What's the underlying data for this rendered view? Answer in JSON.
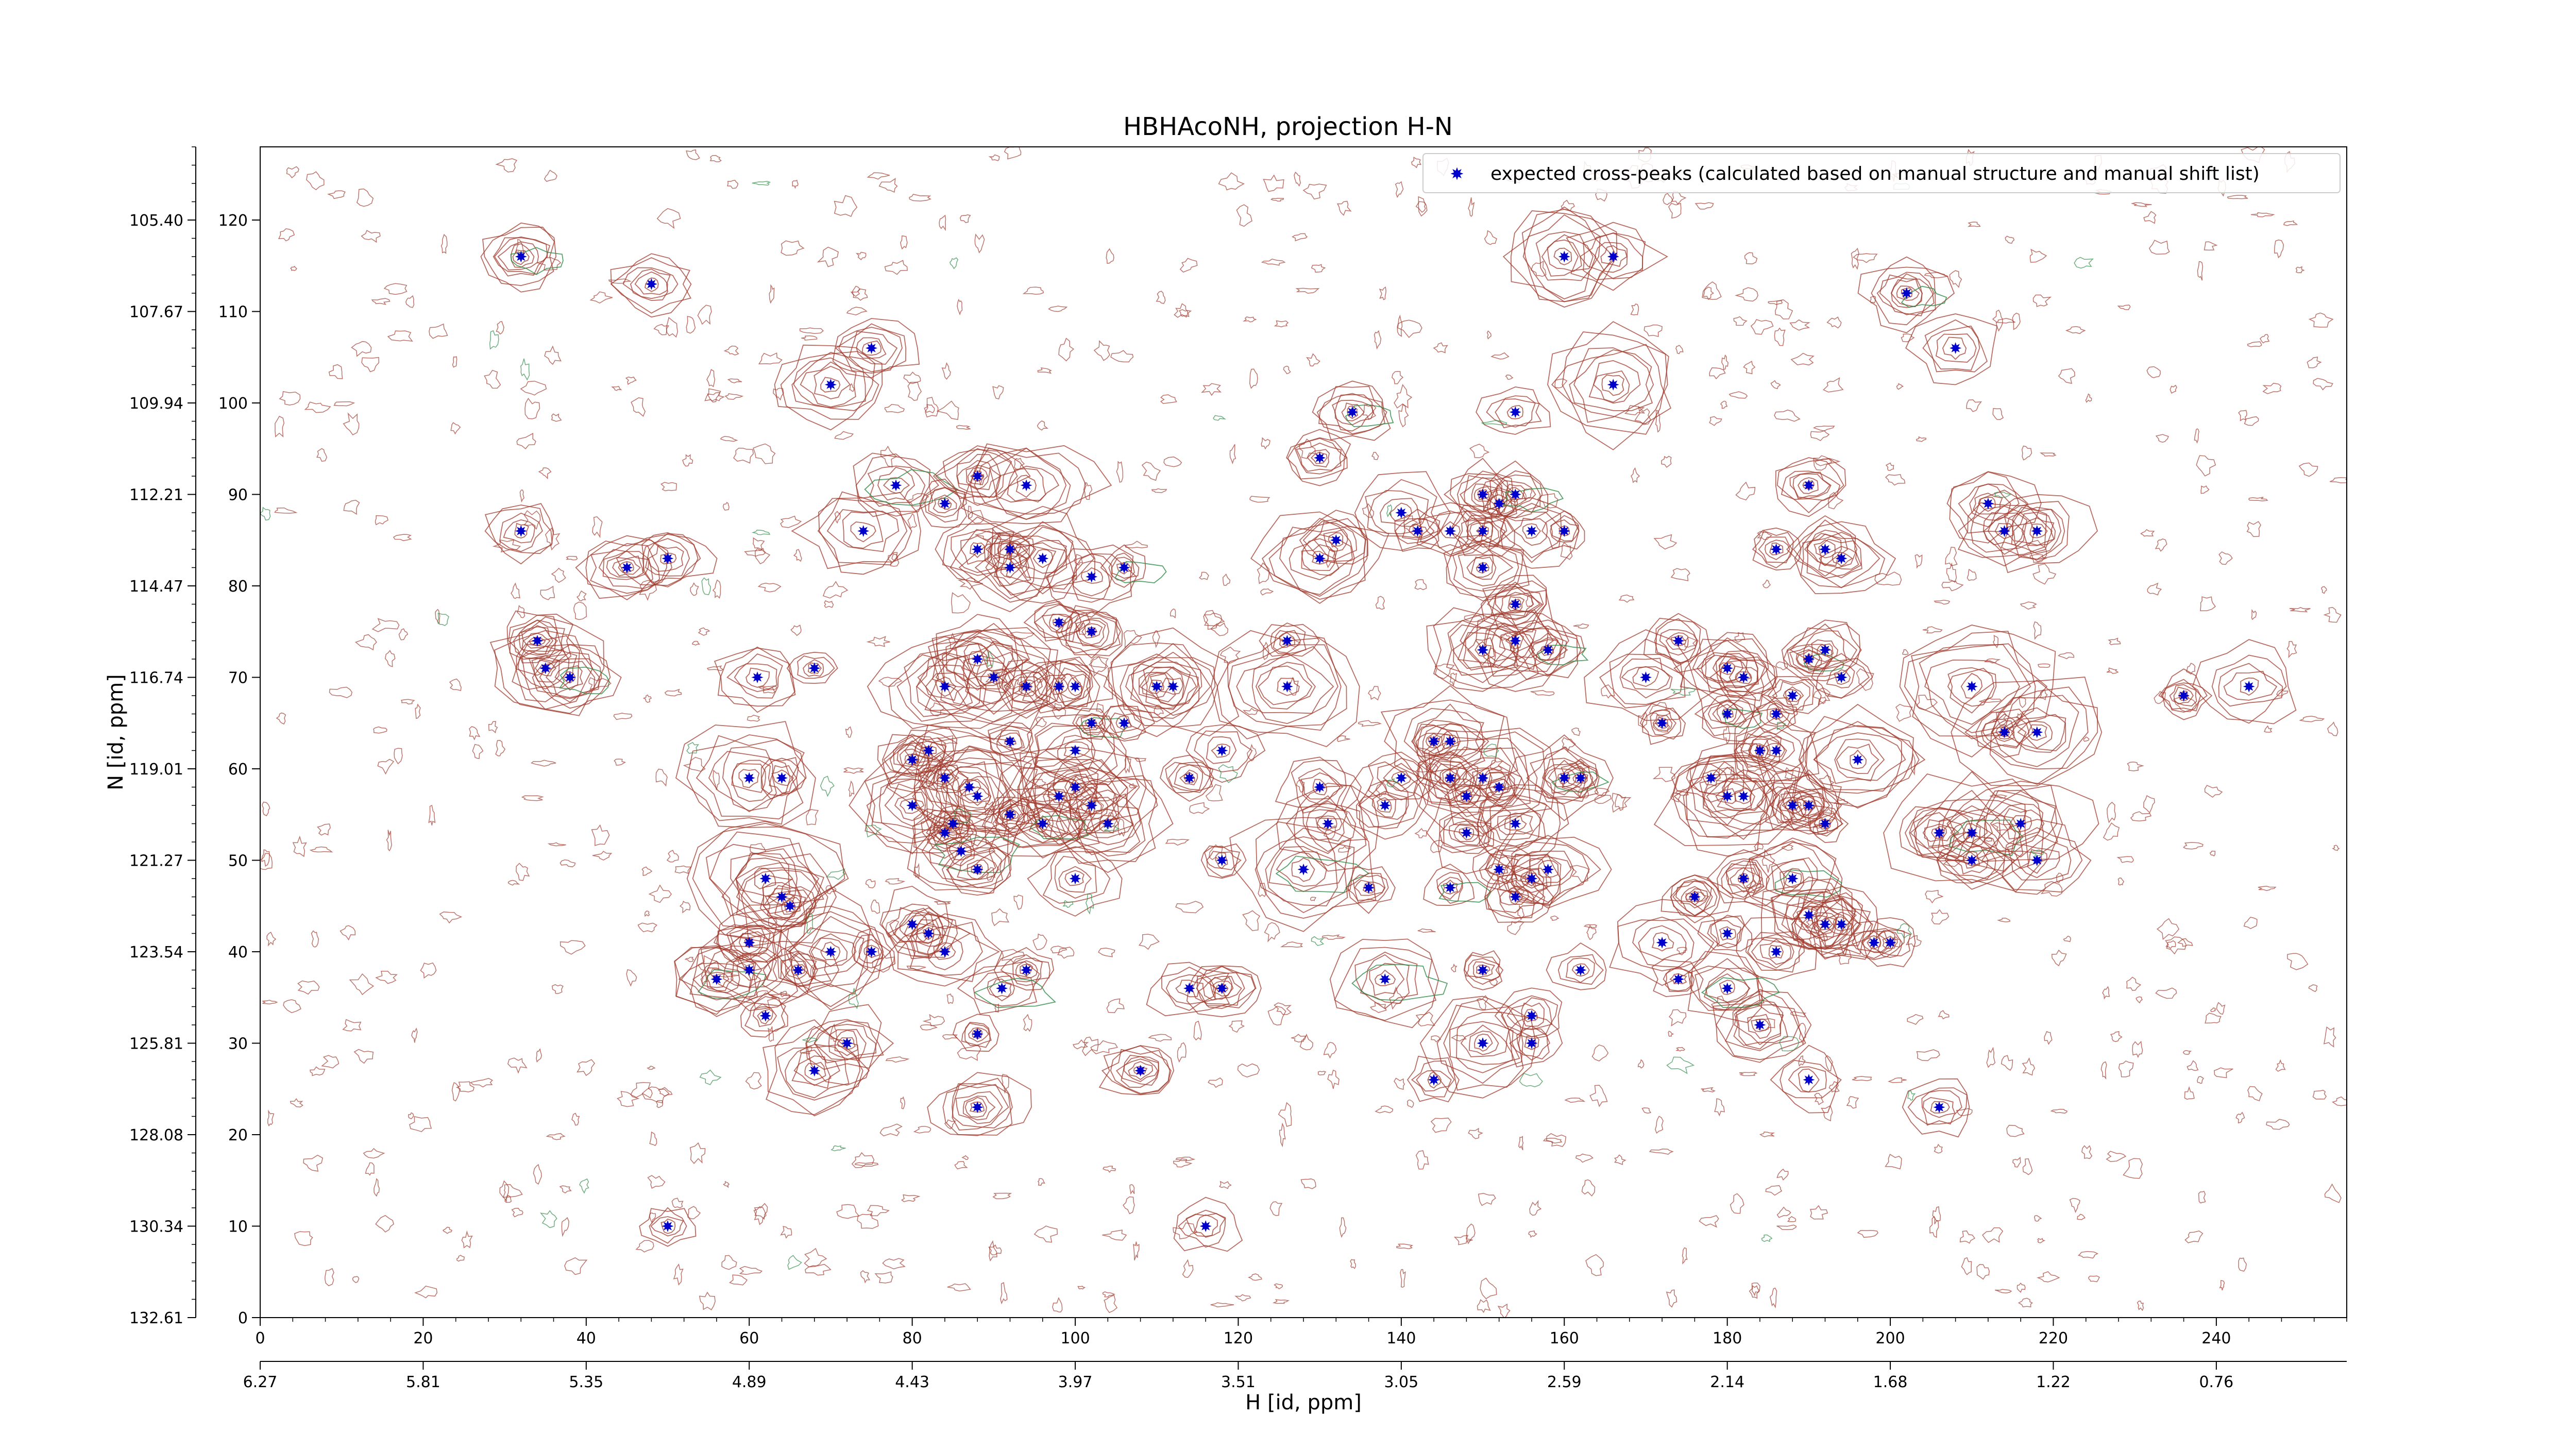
{
  "chart_data": {
    "type": "scatter",
    "title": "HBHAcoNH, projection H-N",
    "xlabel": "H [id, ppm]",
    "ylabel": "N [id, ppm]",
    "xlim": [
      0,
      256
    ],
    "ylim": [
      0,
      128
    ],
    "x_ticks": [
      0,
      20,
      40,
      60,
      80,
      100,
      120,
      140,
      160,
      180,
      200,
      220,
      240
    ],
    "x_ticks_secondary": [
      {
        "at": 0,
        "label": "6.27"
      },
      {
        "at": 20,
        "label": "5.81"
      },
      {
        "at": 40,
        "label": "5.35"
      },
      {
        "at": 60,
        "label": "4.89"
      },
      {
        "at": 80,
        "label": "4.43"
      },
      {
        "at": 100,
        "label": "3.97"
      },
      {
        "at": 120,
        "label": "3.51"
      },
      {
        "at": 140,
        "label": "3.05"
      },
      {
        "at": 160,
        "label": "2.59"
      },
      {
        "at": 180,
        "label": "2.14"
      },
      {
        "at": 200,
        "label": "1.68"
      },
      {
        "at": 220,
        "label": "1.22"
      },
      {
        "at": 240,
        "label": "0.76"
      }
    ],
    "y_ticks": [
      0,
      10,
      20,
      30,
      40,
      50,
      60,
      70,
      80,
      90,
      100,
      110,
      120
    ],
    "y_ticks_secondary": [
      {
        "at": 0,
        "label": "132.61"
      },
      {
        "at": 10,
        "label": "130.34"
      },
      {
        "at": 20,
        "label": "128.08"
      },
      {
        "at": 30,
        "label": "125.81"
      },
      {
        "at": 40,
        "label": "123.54"
      },
      {
        "at": 50,
        "label": "121.27"
      },
      {
        "at": 60,
        "label": "119.01"
      },
      {
        "at": 70,
        "label": "116.74"
      },
      {
        "at": 80,
        "label": "114.47"
      },
      {
        "at": 90,
        "label": "112.21"
      },
      {
        "at": 100,
        "label": "109.94"
      },
      {
        "at": 110,
        "label": "107.67"
      },
      {
        "at": 120,
        "label": "105.40"
      }
    ],
    "legend": {
      "position": "top-right"
    },
    "grid": false,
    "series": [
      {
        "name": "expected cross-peaks (calculated based on manual structure and manual shift list)",
        "color": "#0000cc",
        "marker": "star",
        "points": [
          [
            32,
            116
          ],
          [
            48,
            113
          ],
          [
            70,
            102
          ],
          [
            75,
            106
          ],
          [
            32,
            86
          ],
          [
            45,
            82
          ],
          [
            50,
            83
          ],
          [
            34,
            74
          ],
          [
            35,
            71
          ],
          [
            38,
            70
          ],
          [
            61,
            70
          ],
          [
            68,
            71
          ],
          [
            60,
            59
          ],
          [
            64,
            59
          ],
          [
            62,
            48
          ],
          [
            64,
            46
          ],
          [
            65,
            45
          ],
          [
            60,
            41
          ],
          [
            56,
            37
          ],
          [
            60,
            38
          ],
          [
            66,
            38
          ],
          [
            70,
            40
          ],
          [
            75,
            40
          ],
          [
            62,
            33
          ],
          [
            72,
            30
          ],
          [
            68,
            27
          ],
          [
            74,
            86
          ],
          [
            78,
            91
          ],
          [
            84,
            89
          ],
          [
            88,
            92
          ],
          [
            94,
            91
          ],
          [
            88,
            84
          ],
          [
            92,
            84
          ],
          [
            92,
            82
          ],
          [
            96,
            83
          ],
          [
            102,
            81
          ],
          [
            106,
            82
          ],
          [
            94,
            69
          ],
          [
            98,
            69
          ],
          [
            84,
            69
          ],
          [
            88,
            72
          ],
          [
            90,
            70
          ],
          [
            98,
            76
          ],
          [
            102,
            75
          ],
          [
            100,
            69
          ],
          [
            102,
            65
          ],
          [
            106,
            65
          ],
          [
            110,
            69
          ],
          [
            112,
            69
          ],
          [
            92,
            63
          ],
          [
            100,
            62
          ],
          [
            100,
            58
          ],
          [
            102,
            56
          ],
          [
            98,
            57
          ],
          [
            96,
            54
          ],
          [
            104,
            54
          ],
          [
            100,
            48
          ],
          [
            82,
            62
          ],
          [
            80,
            61
          ],
          [
            84,
            59
          ],
          [
            80,
            56
          ],
          [
            84,
            53
          ],
          [
            85,
            54
          ],
          [
            86,
            51
          ],
          [
            88,
            49
          ],
          [
            87,
            58
          ],
          [
            88,
            57
          ],
          [
            92,
            55
          ],
          [
            80,
            43
          ],
          [
            82,
            42
          ],
          [
            84,
            40
          ],
          [
            94,
            38
          ],
          [
            91,
            36
          ],
          [
            88,
            31
          ],
          [
            88,
            23
          ],
          [
            108,
            27
          ],
          [
            114,
            59
          ],
          [
            118,
            62
          ],
          [
            114,
            36
          ],
          [
            118,
            36
          ],
          [
            130,
            94
          ],
          [
            134,
            99
          ],
          [
            132,
            85
          ],
          [
            140,
            88
          ],
          [
            142,
            86
          ],
          [
            130,
            83
          ],
          [
            126,
            74
          ],
          [
            126,
            69
          ],
          [
            130,
            58
          ],
          [
            131,
            54
          ],
          [
            128,
            49
          ],
          [
            140,
            59
          ],
          [
            138,
            56
          ],
          [
            136,
            47
          ],
          [
            144,
            63
          ],
          [
            146,
            63
          ],
          [
            146,
            59
          ],
          [
            148,
            57
          ],
          [
            148,
            53
          ],
          [
            146,
            47
          ],
          [
            150,
            59
          ],
          [
            152,
            58
          ],
          [
            154,
            54
          ],
          [
            152,
            49
          ],
          [
            154,
            46
          ],
          [
            156,
            48
          ],
          [
            150,
            38
          ],
          [
            156,
            33
          ],
          [
            160,
            59
          ],
          [
            162,
            59
          ],
          [
            158,
            49
          ],
          [
            162,
            38
          ],
          [
            150,
            30
          ],
          [
            156,
            30
          ],
          [
            144,
            26
          ],
          [
            150,
            90
          ],
          [
            152,
            89
          ],
          [
            154,
            90
          ],
          [
            150,
            86
          ],
          [
            146,
            86
          ],
          [
            156,
            86
          ],
          [
            160,
            86
          ],
          [
            150,
            82
          ],
          [
            154,
            78
          ],
          [
            150,
            73
          ],
          [
            154,
            74
          ],
          [
            158,
            73
          ],
          [
            154,
            99
          ],
          [
            166,
            102
          ],
          [
            160,
            116
          ],
          [
            166,
            116
          ],
          [
            170,
            70
          ],
          [
            172,
            65
          ],
          [
            174,
            74
          ],
          [
            180,
            71
          ],
          [
            180,
            66
          ],
          [
            182,
            70
          ],
          [
            178,
            59
          ],
          [
            180,
            57
          ],
          [
            182,
            57
          ],
          [
            184,
            62
          ],
          [
            186,
            62
          ],
          [
            186,
            66
          ],
          [
            188,
            68
          ],
          [
            190,
            72
          ],
          [
            192,
            73
          ],
          [
            194,
            70
          ],
          [
            188,
            56
          ],
          [
            190,
            56
          ],
          [
            192,
            54
          ],
          [
            196,
            61
          ],
          [
            182,
            48
          ],
          [
            180,
            42
          ],
          [
            188,
            48
          ],
          [
            190,
            44
          ],
          [
            192,
            43
          ],
          [
            194,
            43
          ],
          [
            198,
            41
          ],
          [
            200,
            41
          ],
          [
            184,
            32
          ],
          [
            186,
            40
          ],
          [
            176,
            46
          ],
          [
            180,
            36
          ],
          [
            174,
            37
          ],
          [
            172,
            41
          ],
          [
            190,
            26
          ],
          [
            206,
            23
          ],
          [
            186,
            84
          ],
          [
            190,
            91
          ],
          [
            192,
            84
          ],
          [
            194,
            83
          ],
          [
            202,
            112
          ],
          [
            208,
            106
          ],
          [
            212,
            89
          ],
          [
            214,
            86
          ],
          [
            218,
            86
          ],
          [
            210,
            69
          ],
          [
            214,
            64
          ],
          [
            218,
            64
          ],
          [
            206,
            53
          ],
          [
            210,
            53
          ],
          [
            210,
            50
          ],
          [
            216,
            54
          ],
          [
            218,
            50
          ],
          [
            236,
            68
          ],
          [
            244,
            69
          ],
          [
            50,
            10
          ],
          [
            116,
            10
          ],
          [
            118,
            50
          ],
          [
            138,
            37
          ]
        ]
      }
    ]
  }
}
